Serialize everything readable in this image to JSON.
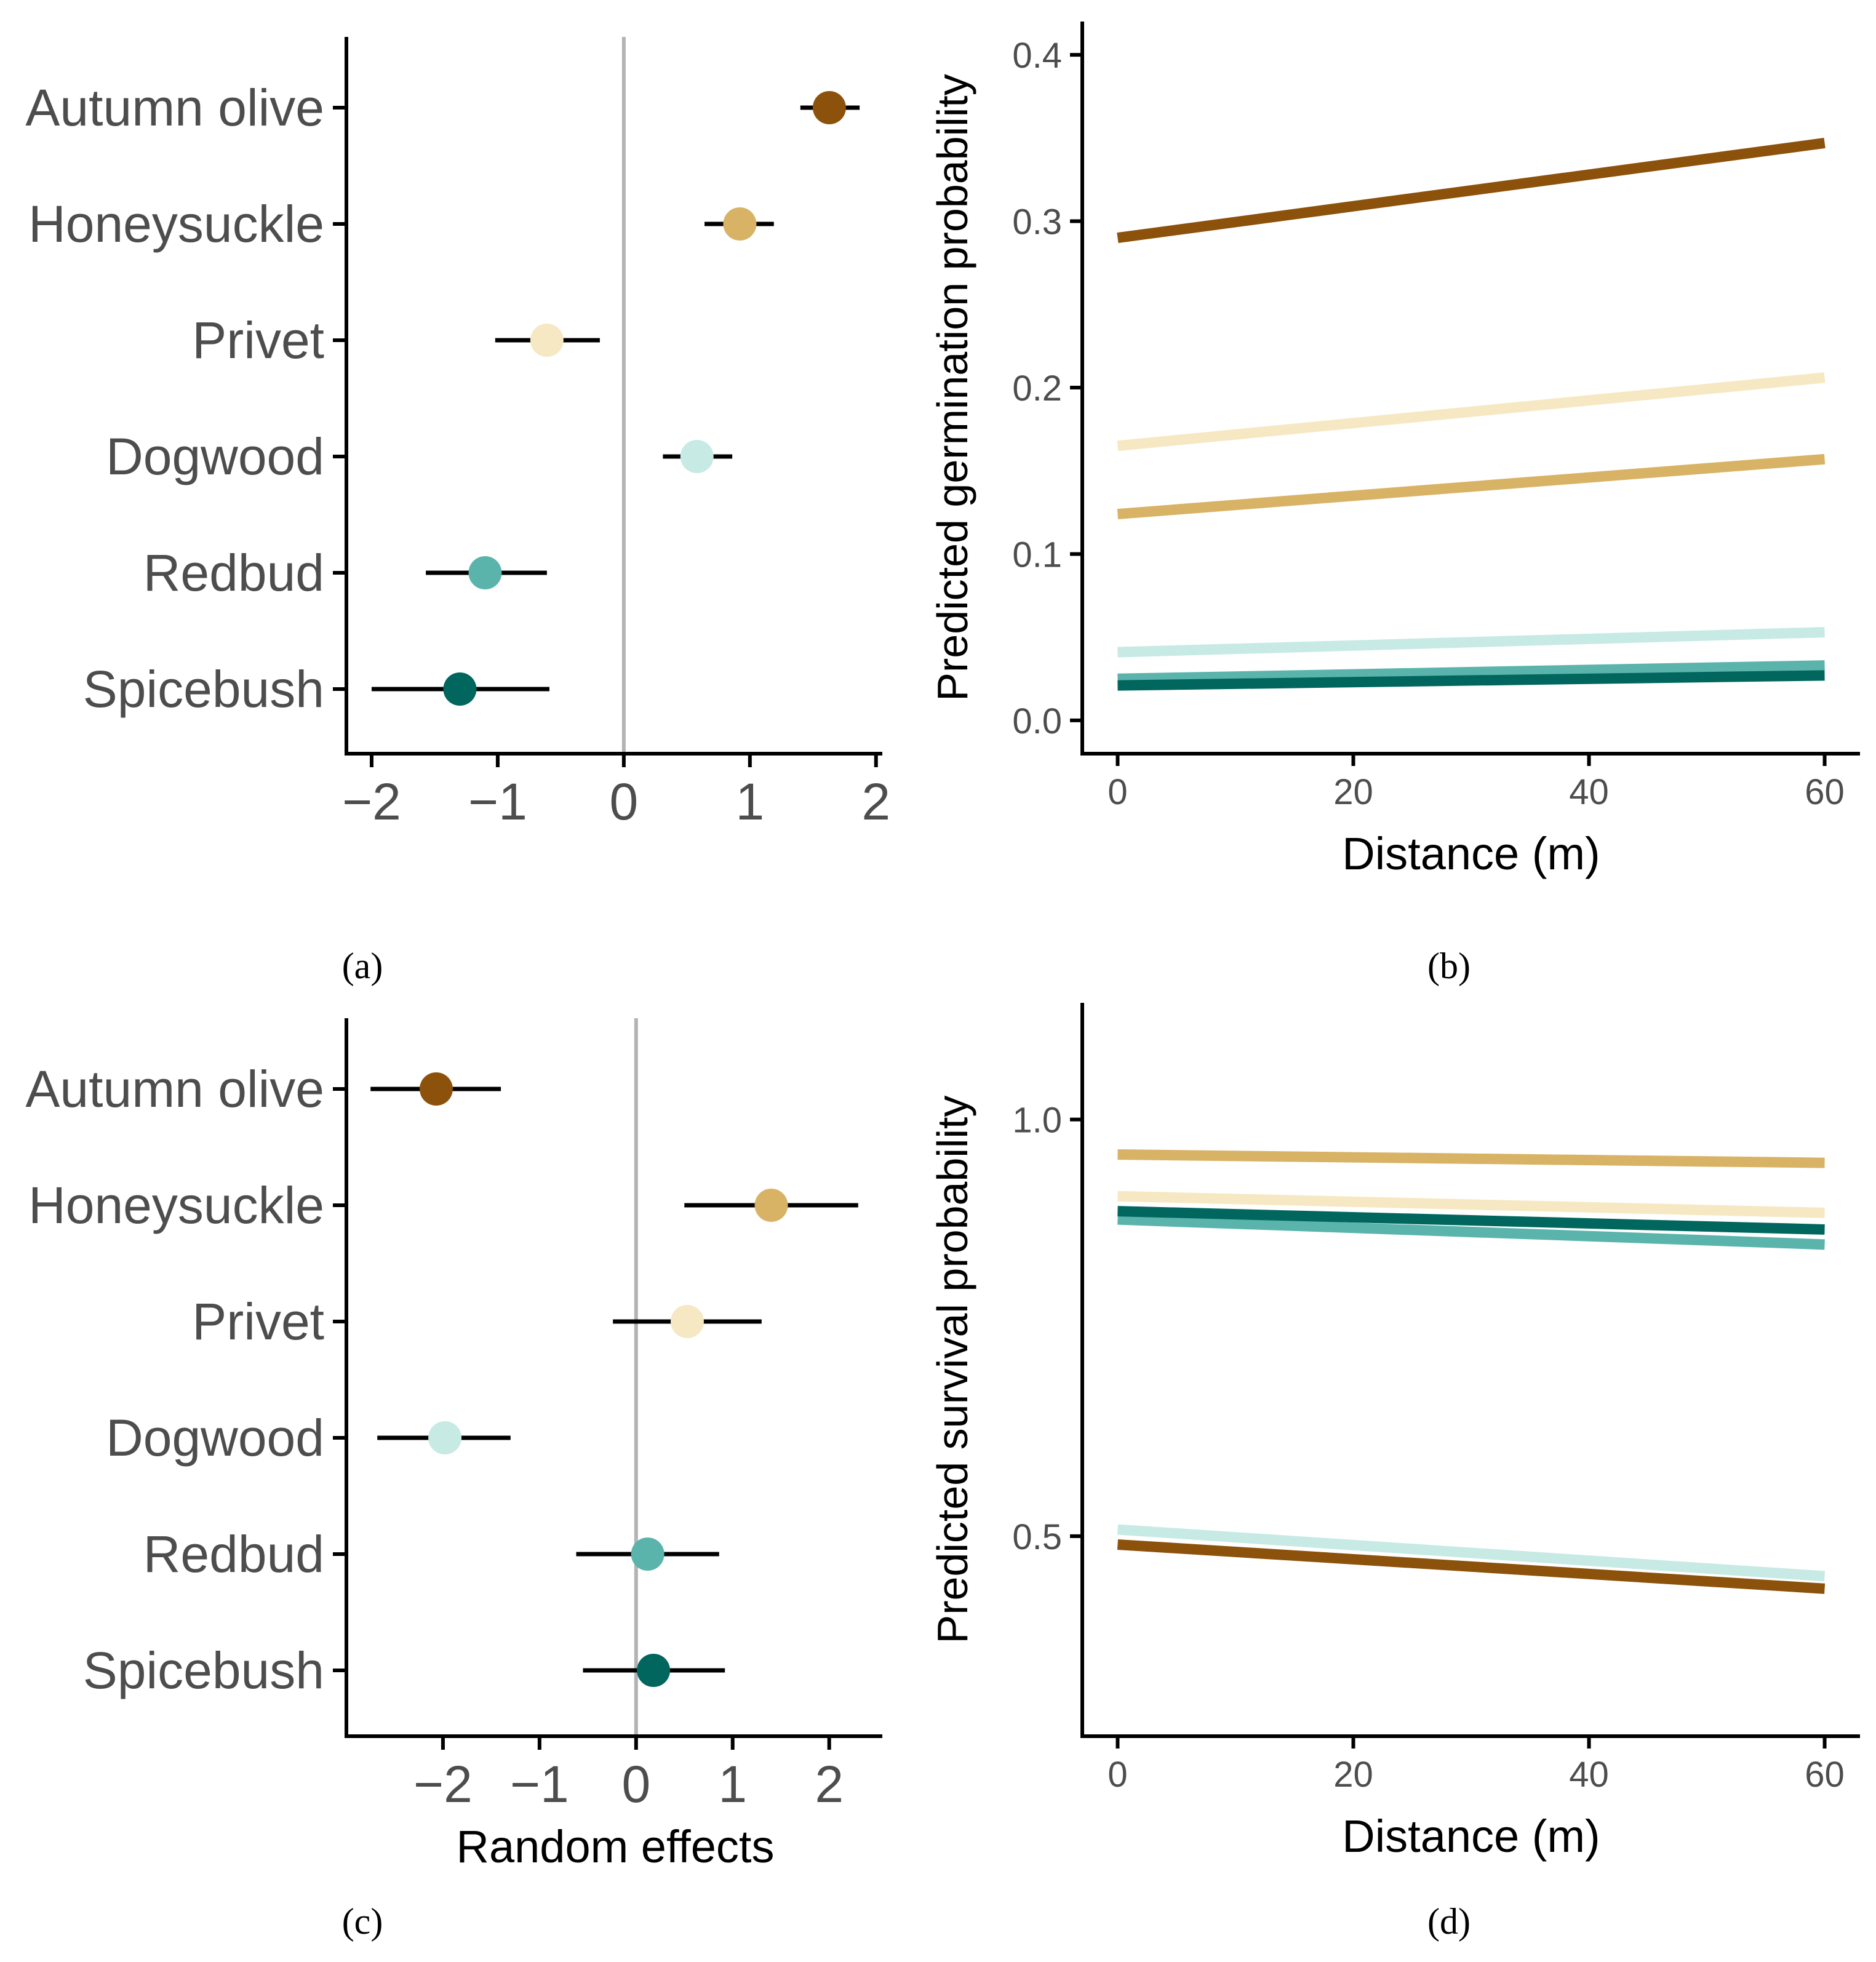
{
  "colors": {
    "Autumn olive": "#8c510a",
    "Honeysuckle": "#d8b365",
    "Privet": "#f6e8c3",
    "Dogwood": "#c7eae5",
    "Redbud": "#5ab4ac",
    "Spicebush": "#01665e",
    "axis": "#000000",
    "zero_line": "#b3b3b3",
    "error_bar": "#000000"
  },
  "chart_data": [
    {
      "panel": "(a)",
      "type": "scatter",
      "title": "",
      "xlabel": "",
      "ylabel": "",
      "xlim": [
        -2.2,
        2.05
      ],
      "xticks": [
        -2,
        -1,
        0,
        1,
        2
      ],
      "xtick_labels": [
        "−2",
        "−1",
        "0",
        "1",
        "2"
      ],
      "reference_line": 0,
      "categories": [
        "Autumn olive",
        "Honeysuckle",
        "Privet",
        "Dogwood",
        "Redbud",
        "Spicebush"
      ],
      "points": [
        {
          "name": "Autumn olive",
          "value": 1.63,
          "lower": 1.4,
          "upper": 1.87
        },
        {
          "name": "Honeysuckle",
          "value": 0.92,
          "lower": 0.64,
          "upper": 1.19
        },
        {
          "name": "Privet",
          "value": -0.61,
          "lower": -1.02,
          "upper": -0.19
        },
        {
          "name": "Dogwood",
          "value": 0.58,
          "lower": 0.31,
          "upper": 0.86
        },
        {
          "name": "Redbud",
          "value": -1.1,
          "lower": -1.57,
          "upper": -0.61
        },
        {
          "name": "Spicebush",
          "value": -1.3,
          "lower": -2.0,
          "upper": -0.59
        }
      ]
    },
    {
      "panel": "(b)",
      "type": "line",
      "title": "",
      "xlabel": "Distance (m)",
      "ylabel": "Predicted germination probability",
      "xlim": [
        -3,
        63
      ],
      "ylim": [
        -0.02,
        0.42
      ],
      "xticks": [
        0,
        20,
        40,
        60
      ],
      "xtick_labels": [
        "0",
        "20",
        "40",
        "60"
      ],
      "yticks": [
        0.0,
        0.1,
        0.2,
        0.3,
        0.4
      ],
      "ytick_labels": [
        "0.0",
        "0.1",
        "0.2",
        "0.3",
        "0.4"
      ],
      "x": [
        0,
        60
      ],
      "series": [
        {
          "name": "Dogwood",
          "values": [
            0.041,
            0.053
          ]
        },
        {
          "name": "Redbud",
          "values": [
            0.025,
            0.033
          ]
        },
        {
          "name": "Spicebush",
          "values": [
            0.021,
            0.027
          ]
        },
        {
          "name": "Honeysuckle",
          "values": [
            0.124,
            0.157
          ]
        },
        {
          "name": "Privet",
          "values": [
            0.165,
            0.206
          ]
        },
        {
          "name": "Autumn olive",
          "values": [
            0.29,
            0.347
          ]
        }
      ]
    },
    {
      "panel": "(c)",
      "type": "scatter",
      "title": "",
      "xlabel": "Random effects",
      "ylabel": "",
      "xlim": [
        -3.0,
        2.55
      ],
      "xticks": [
        -2,
        -1,
        0,
        1,
        2
      ],
      "xtick_labels": [
        "−2",
        "−1",
        "0",
        "1",
        "2"
      ],
      "reference_line": 0,
      "categories": [
        "Autumn olive",
        "Honeysuckle",
        "Privet",
        "Dogwood",
        "Redbud",
        "Spicebush"
      ],
      "points": [
        {
          "name": "Autumn olive",
          "value": -2.07,
          "lower": -2.75,
          "upper": -1.4
        },
        {
          "name": "Honeysuckle",
          "value": 1.4,
          "lower": 0.5,
          "upper": 2.3
        },
        {
          "name": "Privet",
          "value": 0.53,
          "lower": -0.24,
          "upper": 1.3
        },
        {
          "name": "Dogwood",
          "value": -1.98,
          "lower": -2.68,
          "upper": -1.3
        },
        {
          "name": "Redbud",
          "value": 0.12,
          "lower": -0.62,
          "upper": 0.86
        },
        {
          "name": "Spicebush",
          "value": 0.18,
          "lower": -0.55,
          "upper": 0.92
        }
      ]
    },
    {
      "panel": "(d)",
      "type": "line",
      "title": "",
      "xlabel": "Distance (m)",
      "ylabel": "Predicted survival probability",
      "xlim": [
        -3,
        63
      ],
      "ylim": [
        0.26,
        1.14
      ],
      "xticks": [
        0,
        20,
        40,
        60
      ],
      "xtick_labels": [
        "0",
        "20",
        "40",
        "60"
      ],
      "yticks": [
        0.5,
        1.0
      ],
      "ytick_labels": [
        "0.5",
        "1.0"
      ],
      "x": [
        0,
        60
      ],
      "series": [
        {
          "name": "Dogwood",
          "values": [
            0.508,
            0.452
          ]
        },
        {
          "name": "Autumn olive",
          "values": [
            0.49,
            0.437
          ]
        },
        {
          "name": "Privet",
          "values": [
            0.908,
            0.888
          ]
        },
        {
          "name": "Redbud",
          "values": [
            0.88,
            0.85
          ]
        },
        {
          "name": "Spicebush",
          "values": [
            0.89,
            0.868
          ]
        },
        {
          "name": "Honeysuckle",
          "values": [
            0.958,
            0.948
          ]
        }
      ]
    }
  ],
  "panel_labels": {
    "a": "(a)",
    "b": "(b)",
    "c": "(c)",
    "d": "(d)"
  }
}
